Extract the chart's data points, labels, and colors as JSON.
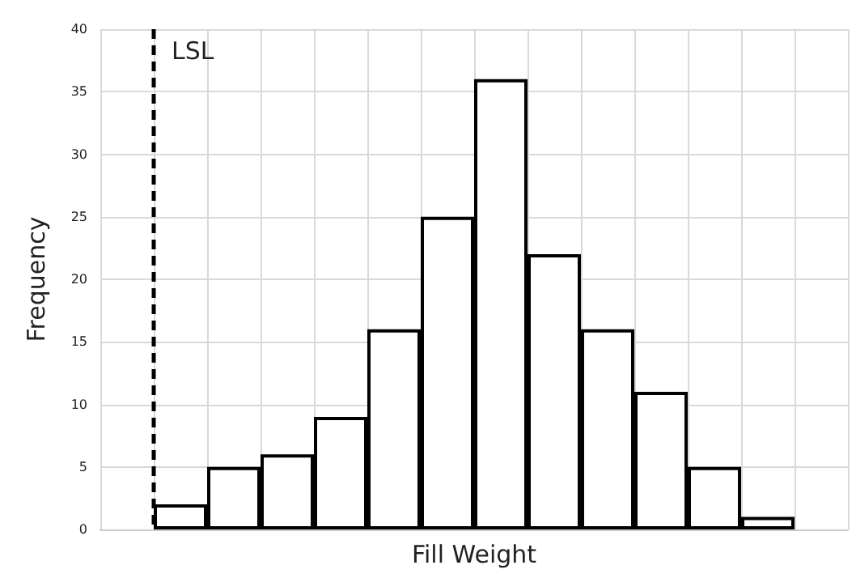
{
  "chart_data": {
    "type": "bar",
    "xlabel": "Fill Weight",
    "ylabel": "Frequency",
    "categories": [
      null,
      null,
      null,
      null,
      null,
      null,
      null,
      null,
      null,
      null,
      null,
      null,
      null,
      null
    ],
    "values": [
      null,
      2,
      5,
      6,
      9,
      16,
      25,
      36,
      22,
      16,
      11,
      5,
      1,
      null
    ],
    "color": "#ffffff",
    "ylim": [
      0,
      40
    ],
    "yticks": [
      0,
      5,
      10,
      15,
      20,
      25,
      30,
      35,
      40
    ],
    "grid": true,
    "tick_labels": "y",
    "ref_lines": [
      {
        "axis": "x",
        "label": "LSL",
        "line_style": "dashed",
        "color": "#000000"
      }
    ]
  }
}
